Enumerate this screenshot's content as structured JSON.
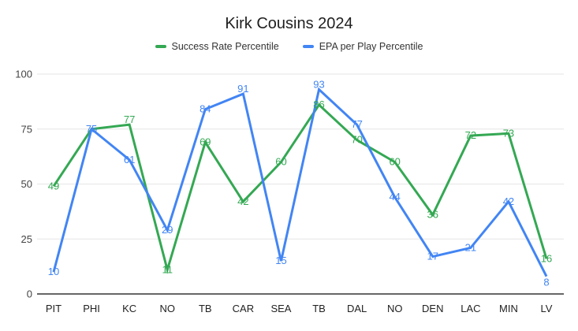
{
  "chart_data": {
    "type": "line",
    "title": "Kirk Cousins 2024",
    "title_color": "#1f1f1f",
    "categories": [
      "PIT",
      "PHI",
      "KC",
      "NO",
      "TB",
      "CAR",
      "SEA",
      "TB",
      "DAL",
      "NO",
      "DEN",
      "LAC",
      "MIN",
      "LV"
    ],
    "series": [
      {
        "name": "Success Rate Percentile",
        "color": "#34a853",
        "values": [
          49,
          75,
          77,
          11,
          69,
          42,
          60,
          86,
          70,
          60,
          36,
          72,
          73,
          16
        ],
        "label_pos": [
          "center",
          "hidden",
          "above",
          "center",
          "center",
          "center",
          "center",
          "center",
          "center",
          "center",
          "center",
          "center",
          "center",
          "center"
        ]
      },
      {
        "name": "EPA per Play Percentile",
        "color": "#4285f4",
        "values": [
          10,
          75,
          61,
          29,
          84,
          91,
          15,
          93,
          77,
          44,
          17,
          21,
          42,
          8
        ],
        "label_pos": [
          "center",
          "center",
          "center",
          "center",
          "center",
          "above",
          "center",
          "above",
          "center",
          "center",
          "center",
          "center",
          "center",
          "below"
        ]
      }
    ],
    "xlabel": "",
    "ylabel": "",
    "ylim": [
      0,
      100
    ],
    "yticks": [
      0,
      25,
      50,
      75,
      100
    ],
    "grid": true,
    "grid_color": "#e6e6e6",
    "axis_color": "#333333",
    "ytick_label_color": "#444444",
    "xtick_label_color": "#222222",
    "legend_position": "top",
    "point_labels": true
  }
}
